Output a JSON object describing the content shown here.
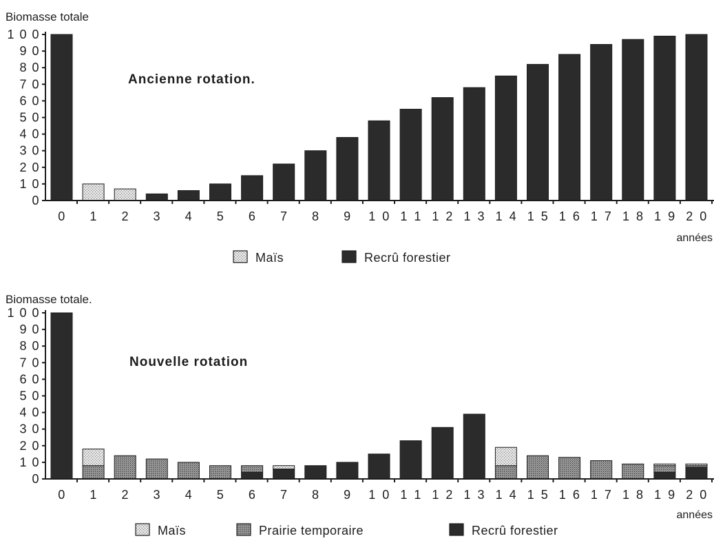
{
  "colors": {
    "foret": "#2b2b2b",
    "mais": "#d6d6d6",
    "prairie": "#8c8c8c",
    "axis": "#1c1c1c"
  },
  "chart_data": [
    {
      "type": "bar",
      "stacked": true,
      "title": "Ancienne  rotation.",
      "ylabel": "Biomasse totale",
      "xlabel": "années",
      "ylim": [
        0,
        100
      ],
      "yticks": [
        "0",
        "1 0",
        "2 0",
        "3 0",
        "4 0",
        "5 0",
        "6 0",
        "7 0",
        "8 0",
        "9 0",
        "1 0 0"
      ],
      "categories": [
        "0",
        "1",
        "2",
        "3",
        "4",
        "5",
        "6",
        "7",
        "8",
        "9",
        "1 0",
        "1 1",
        "1 2",
        "1 3",
        "1 4",
        "1 5",
        "1 6",
        "1 7",
        "1 8",
        "1 9",
        "2 0"
      ],
      "series": [
        {
          "key": "mais",
          "name": "Maïs",
          "values": [
            0,
            10,
            7,
            0,
            0,
            0,
            0,
            0,
            0,
            0,
            0,
            0,
            0,
            0,
            0,
            0,
            0,
            0,
            0,
            0,
            0
          ]
        },
        {
          "key": "foret",
          "name": "Recrû  forestier",
          "values": [
            100,
            0,
            0,
            4,
            6,
            10,
            15,
            22,
            30,
            38,
            48,
            55,
            62,
            68,
            75,
            82,
            88,
            94,
            97,
            99,
            100
          ]
        }
      ],
      "legend": [
        "mais",
        "foret"
      ]
    },
    {
      "type": "bar",
      "stacked": true,
      "title": "Nouvelle  rotation",
      "ylabel": "Biomasse totale.",
      "xlabel": "années",
      "ylim": [
        0,
        100
      ],
      "yticks": [
        "0",
        "1 0",
        "2 0",
        "3 0",
        "4 0",
        "5 0",
        "6 0",
        "7 0",
        "8 0",
        "9 0",
        "1 0 0"
      ],
      "categories": [
        "0",
        "1",
        "2",
        "3",
        "4",
        "5",
        "6",
        "7",
        "8",
        "9",
        "1 0",
        "1 1",
        "1 2",
        "1 3",
        "1 4",
        "1 5",
        "1 6",
        "1 7",
        "1 8",
        "1 9",
        "2 0"
      ],
      "series": [
        {
          "key": "foret",
          "name": "Recrû  forestier",
          "values": [
            100,
            0,
            0,
            0,
            0,
            0,
            4,
            6,
            8,
            10,
            15,
            23,
            31,
            39,
            0,
            0,
            0,
            0,
            0,
            4,
            7
          ]
        },
        {
          "key": "prairie",
          "name": "Prairie  temporaire",
          "values": [
            0,
            8,
            14,
            12,
            10,
            8,
            4,
            0,
            0,
            0,
            0,
            0,
            0,
            0,
            8,
            14,
            13,
            11,
            9,
            4,
            1
          ]
        },
        {
          "key": "mais",
          "name": "Maïs",
          "values": [
            0,
            10,
            0,
            0,
            0,
            0,
            0,
            2,
            0,
            0,
            0,
            0,
            0,
            0,
            11,
            0,
            0,
            0,
            0,
            1,
            1
          ]
        }
      ],
      "legend": [
        "mais",
        "prairie",
        "foret"
      ]
    }
  ]
}
